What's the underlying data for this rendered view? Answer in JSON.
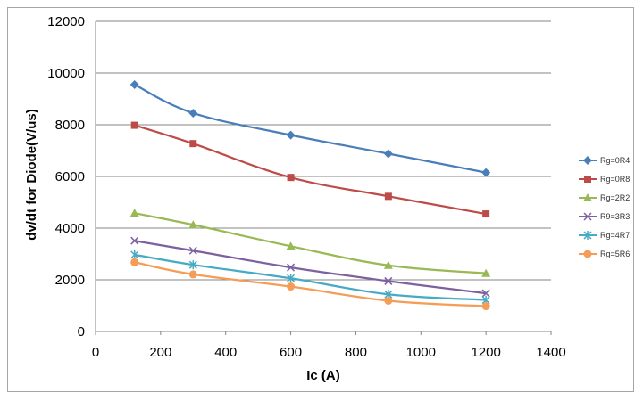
{
  "chart_data": {
    "type": "line",
    "title": "",
    "xlabel": "Ic (A)",
    "ylabel": "dv/dt for Diode(V/us)",
    "xlim": [
      0,
      1400
    ],
    "ylim": [
      0,
      12000
    ],
    "xticks": [
      0,
      200,
      400,
      600,
      800,
      1000,
      1200,
      1400
    ],
    "yticks": [
      0,
      2000,
      4000,
      6000,
      8000,
      10000,
      12000
    ],
    "grid": "horizontal",
    "legend_position": "right",
    "x": [
      120,
      300,
      600,
      900,
      1200
    ],
    "series": [
      {
        "name": "Rg=0R4",
        "color": "#4a7ebb",
        "marker": "diamond",
        "values": [
          9550,
          8450,
          7600,
          6880,
          6150
        ]
      },
      {
        "name": "Rg=0R8",
        "color": "#be4b48",
        "marker": "square",
        "values": [
          7980,
          7270,
          5960,
          5230,
          4550
        ]
      },
      {
        "name": "Rg=2R2",
        "color": "#98b954",
        "marker": "triangle",
        "values": [
          4580,
          4130,
          3300,
          2560,
          2250
        ]
      },
      {
        "name": "R9=3R3",
        "color": "#7d60a0",
        "marker": "x",
        "values": [
          3510,
          3130,
          2480,
          1950,
          1480
        ]
      },
      {
        "name": "Rg=4R7",
        "color": "#46aac5",
        "marker": "star",
        "values": [
          2970,
          2580,
          2060,
          1440,
          1220
        ]
      },
      {
        "name": "Rg=5R6",
        "color": "#f59d56",
        "marker": "circle",
        "values": [
          2680,
          2210,
          1740,
          1190,
          980
        ]
      }
    ]
  }
}
